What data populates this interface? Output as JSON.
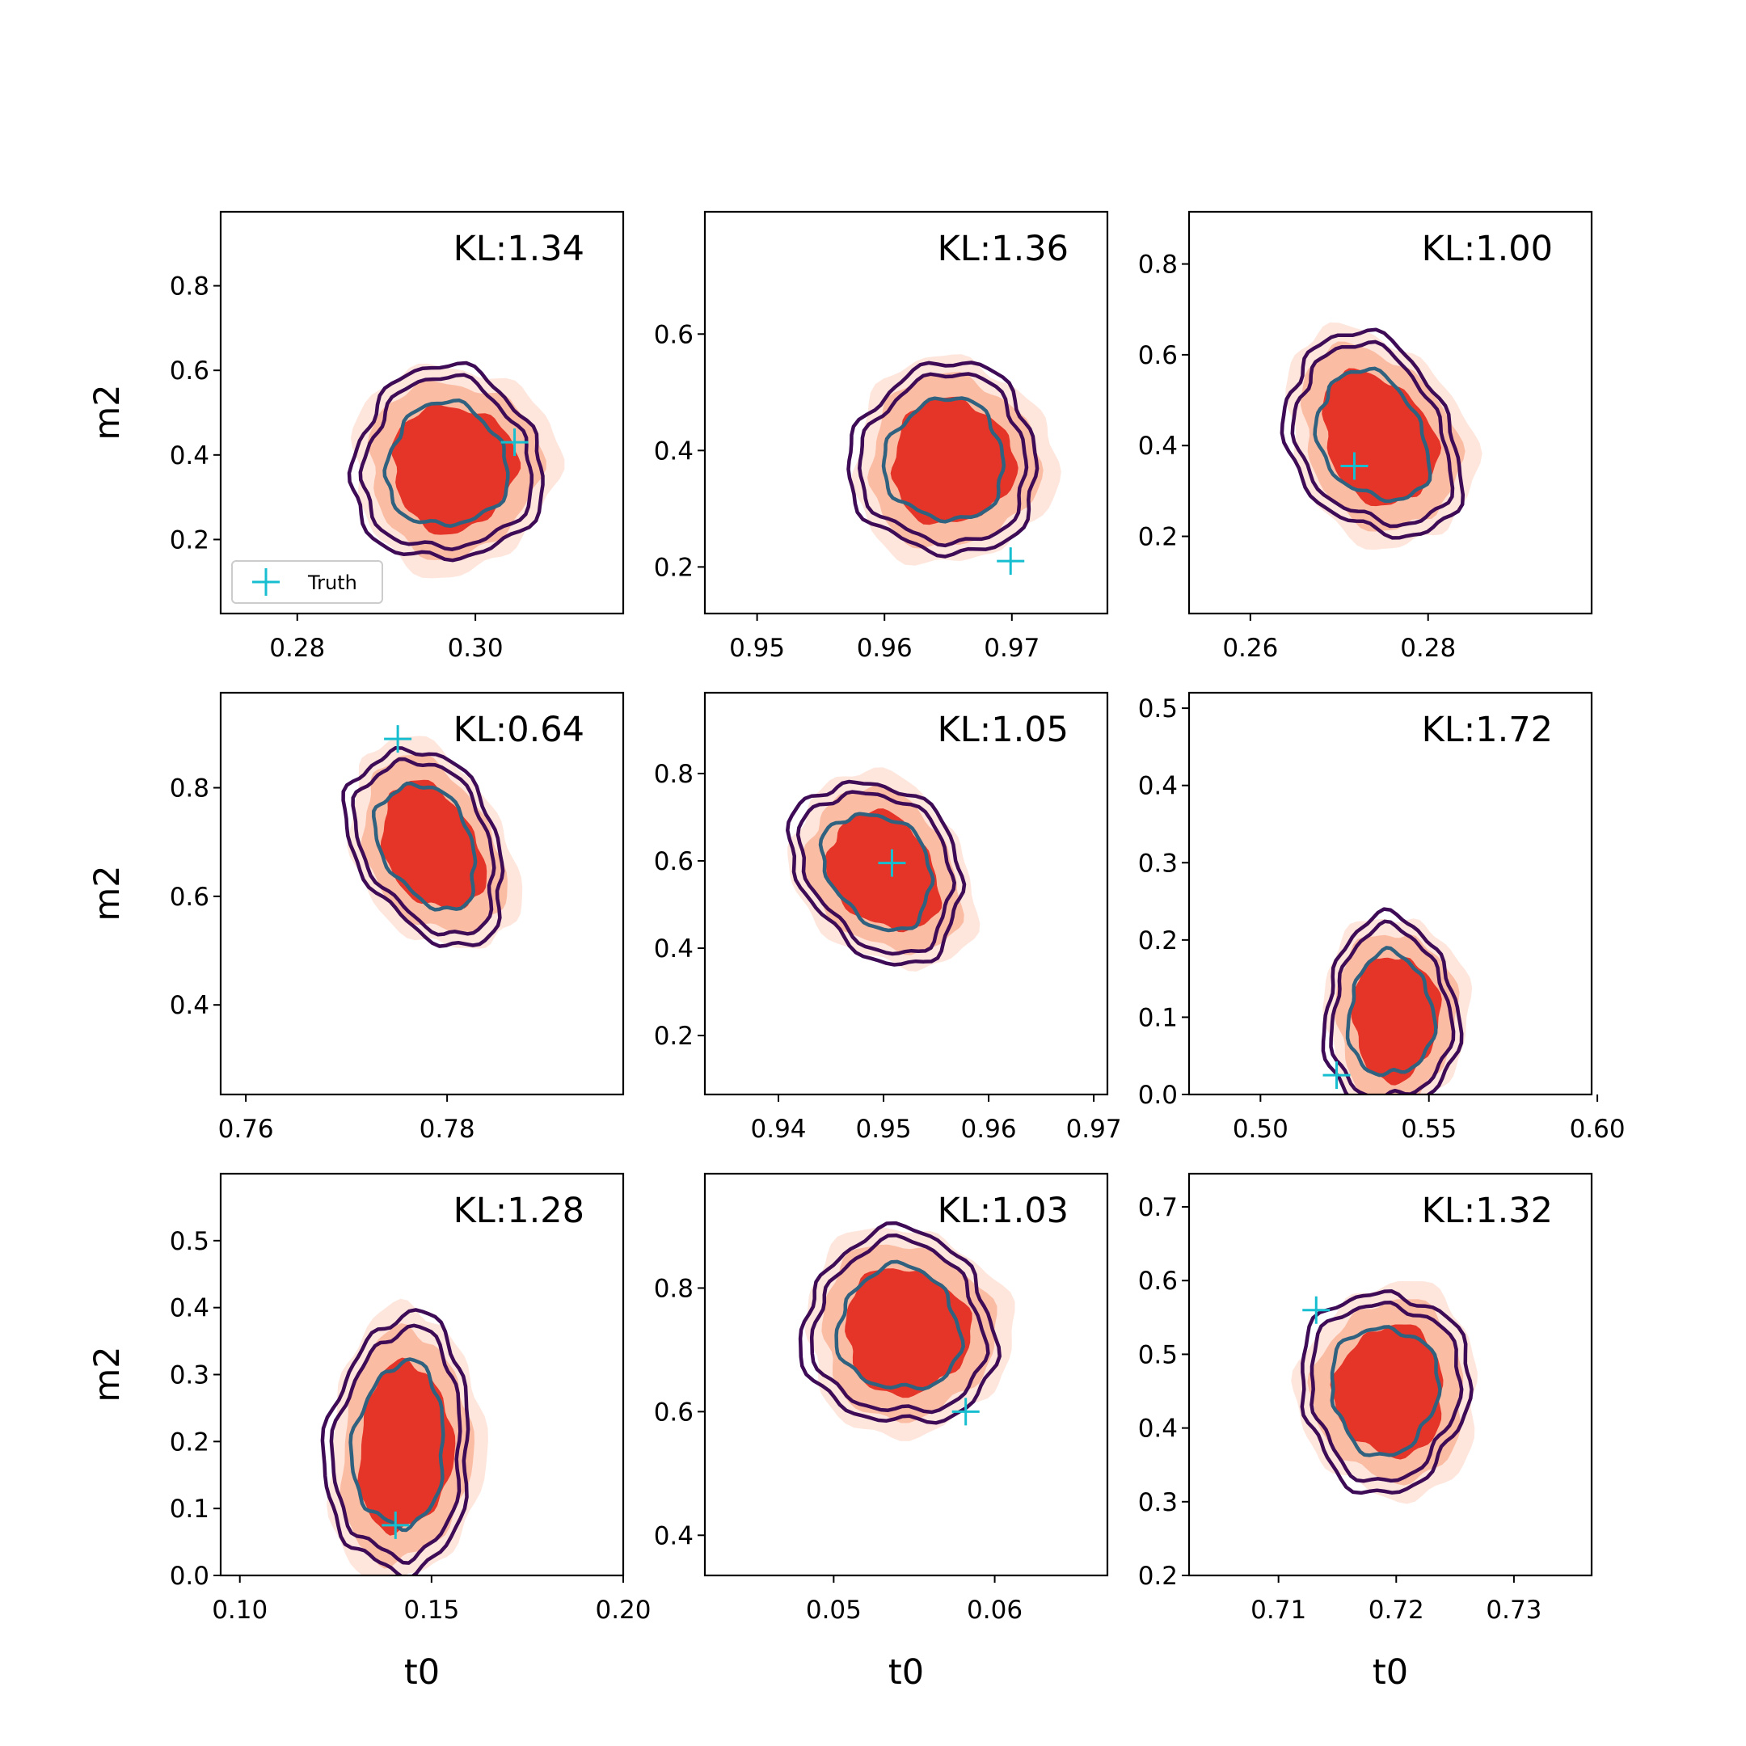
{
  "figure": {
    "xlabel": "t0",
    "ylabel": "m2"
  },
  "legend": {
    "label": "Truth",
    "marker": "plus",
    "color": "#17becf"
  },
  "colors": {
    "fill_outer": "#fee6dc",
    "fill_mid": "#fbbca4",
    "fill_inner": "#e53528",
    "contour_outer": "#3e0b56",
    "contour_mid": "#3e0b56",
    "contour_inner": "#30627f",
    "truth": "#17becf"
  },
  "chart_data": [
    {
      "type": "contour",
      "kl": "KL:1.34",
      "xlim": [
        0.2714,
        0.3166
      ],
      "ylim": [
        0.025,
        0.975
      ],
      "xticks": [
        0.28,
        0.3
      ],
      "xtick_labels": [
        "0.28",
        "0.30"
      ],
      "yticks": [
        0.2,
        0.4,
        0.6,
        0.8
      ],
      "ytick_labels": [
        "0.2",
        "0.4",
        "0.6",
        "0.8"
      ],
      "center": [
        0.2975,
        0.37
      ],
      "extent": [
        0.0094,
        0.202
      ],
      "angle": -6,
      "truth": [
        0.3044,
        0.43
      ],
      "show_legend": true
    },
    {
      "type": "contour",
      "kl": "KL:1.36",
      "xlim": [
        0.9459,
        0.9775
      ],
      "ylim": [
        0.12,
        0.81
      ],
      "xticks": [
        0.95,
        0.96,
        0.97
      ],
      "xtick_labels": [
        "0.95",
        "0.96",
        "0.97"
      ],
      "yticks": [
        0.2,
        0.4,
        0.6
      ],
      "ytick_labels": [
        "0.2",
        "0.4",
        "0.6"
      ],
      "center": [
        0.9653,
        0.38
      ],
      "extent": [
        0.0065,
        0.145
      ],
      "angle": -5,
      "truth": [
        0.9699,
        0.21
      ]
    },
    {
      "type": "contour",
      "kl": "KL:1.00",
      "xlim": [
        0.2531,
        0.2984
      ],
      "ylim": [
        0.03,
        0.915
      ],
      "xticks": [
        0.26,
        0.28
      ],
      "xtick_labels": [
        "0.26",
        "0.28"
      ],
      "yticks": [
        0.2,
        0.4,
        0.6,
        0.8
      ],
      "ytick_labels": [
        "0.2",
        "0.4",
        "0.6",
        "0.8"
      ],
      "center": [
        0.2744,
        0.415
      ],
      "extent": [
        0.0079,
        0.21
      ],
      "angle": 30,
      "truth": [
        0.2717,
        0.355
      ]
    },
    {
      "type": "contour",
      "kl": "KL:0.64",
      "xlim": [
        0.7575,
        0.7975
      ],
      "ylim": [
        0.235,
        0.975
      ],
      "xticks": [
        0.76,
        0.78
      ],
      "xtick_labels": [
        "0.76",
        "0.78"
      ],
      "yticks": [
        0.4,
        0.6,
        0.8
      ],
      "ytick_labels": [
        "0.4",
        "0.6",
        "0.8"
      ],
      "center": [
        0.7785,
        0.69
      ],
      "extent": [
        0.0061,
        0.17
      ],
      "angle": 28,
      "truth": [
        0.7751,
        0.89
      ]
    },
    {
      "type": "contour",
      "kl": "KL:1.05",
      "xlim": [
        0.933,
        0.9713
      ],
      "ylim": [
        0.065,
        0.985
      ],
      "xticks": [
        0.94,
        0.95,
        0.96,
        0.97
      ],
      "xtick_labels": [
        "0.94",
        "0.95",
        "0.96",
        "0.97"
      ],
      "yticks": [
        0.2,
        0.4,
        0.6,
        0.8
      ],
      "ytick_labels": [
        "0.2",
        "0.4",
        "0.6",
        "0.8"
      ],
      "center": [
        0.95,
        0.575
      ],
      "extent": [
        0.0064,
        0.2
      ],
      "angle": 38,
      "truth": [
        0.9508,
        0.595
      ]
    },
    {
      "type": "contour",
      "kl": "KL:1.72",
      "xlim": [
        0.4788,
        0.5983
      ],
      "ylim": [
        0.0,
        0.52
      ],
      "xticks": [
        0.5,
        0.55,
        0.6
      ],
      "xtick_labels": [
        "0.50",
        "0.55",
        "0.60"
      ],
      "yticks": [
        0.0,
        0.1,
        0.2,
        0.3,
        0.4,
        0.5
      ],
      "ytick_labels": [
        "0.0",
        "0.1",
        "0.2",
        "0.3",
        "0.4",
        "0.5"
      ],
      "center": [
        0.54,
        0.1
      ],
      "extent": [
        0.0175,
        0.11
      ],
      "angle": 0,
      "truth": [
        0.5226,
        0.025
      ]
    },
    {
      "type": "contour",
      "kl": "KL:1.28",
      "xlim": [
        0.095,
        0.2
      ],
      "ylim": [
        0.0,
        0.6
      ],
      "xticks": [
        0.1,
        0.15,
        0.2
      ],
      "xtick_labels": [
        "0.10",
        "0.15",
        "0.20"
      ],
      "yticks": [
        0.0,
        0.1,
        0.2,
        0.3,
        0.4,
        0.5
      ],
      "ytick_labels": [
        "0.0",
        "0.1",
        "0.2",
        "0.3",
        "0.4",
        "0.5"
      ],
      "center": [
        0.143,
        0.19
      ],
      "extent": [
        0.0165,
        0.17
      ],
      "angle": -4,
      "truth": [
        0.1406,
        0.075
      ]
    },
    {
      "type": "contour",
      "kl": "KL:1.03",
      "xlim": [
        0.042,
        0.067
      ],
      "ylim": [
        0.335,
        0.985
      ],
      "xticks": [
        0.05,
        0.06
      ],
      "xtick_labels": [
        "0.05",
        "0.06"
      ],
      "yticks": [
        0.4,
        0.6,
        0.8
      ],
      "ytick_labels": [
        "0.4",
        "0.6",
        "0.8"
      ],
      "center": [
        0.0545,
        0.73
      ],
      "extent": [
        0.0052,
        0.14
      ],
      "angle": 36,
      "truth": [
        0.0582,
        0.6
      ]
    },
    {
      "type": "contour",
      "kl": "KL:1.32",
      "xlim": [
        0.7024,
        0.7366
      ],
      "ylim": [
        0.2,
        0.745
      ],
      "xticks": [
        0.71,
        0.72,
        0.73
      ],
      "xtick_labels": [
        "0.71",
        "0.72",
        "0.73"
      ],
      "yticks": [
        0.2,
        0.3,
        0.4,
        0.5,
        0.6,
        0.7
      ],
      "ytick_labels": [
        "0.2",
        "0.3",
        "0.4",
        "0.5",
        "0.6",
        "0.7"
      ],
      "center": [
        0.7195,
        0.45
      ],
      "extent": [
        0.0063,
        0.12
      ],
      "angle": 0,
      "truth": [
        0.7132,
        0.56
      ]
    }
  ]
}
